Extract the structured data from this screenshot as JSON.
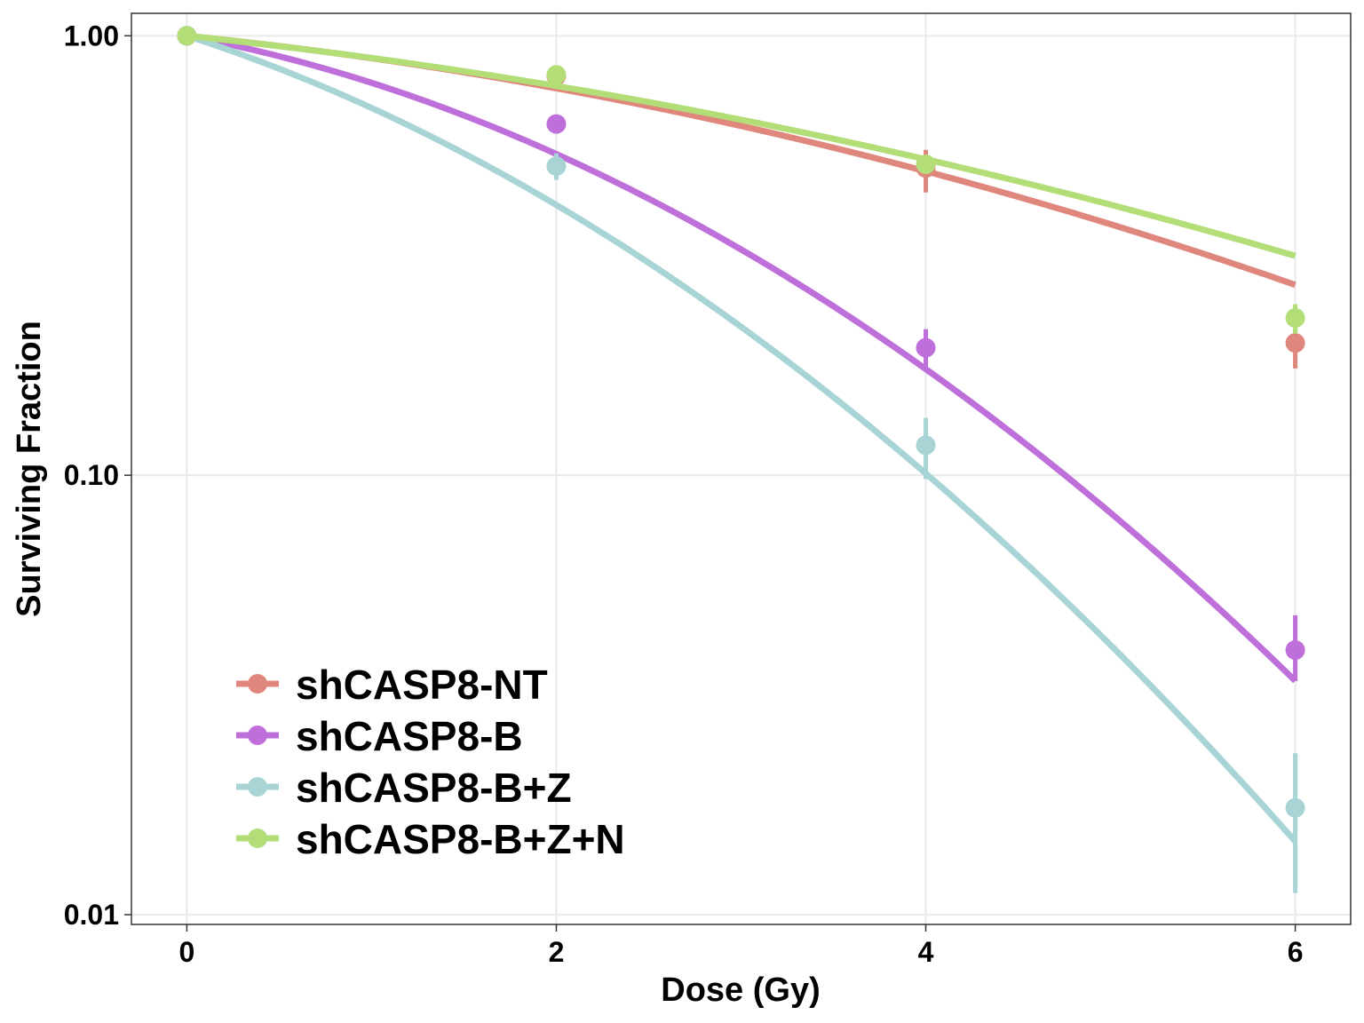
{
  "chart_data": {
    "type": "line",
    "title": "",
    "xlabel": "Dose (Gy)",
    "ylabel": "Surviving Fraction",
    "xlim": [
      -0.3,
      6.3
    ],
    "ylim": [
      0.0095,
      1.125
    ],
    "y_scale": "log",
    "grid": true,
    "legend_position": "bottom-left",
    "x_ticks": [
      0,
      2,
      4,
      6
    ],
    "x_tick_labels": [
      "0",
      "2",
      "4",
      "6"
    ],
    "y_ticks": [
      0.01,
      0.1,
      1
    ],
    "y_tick_labels": [
      "0.01",
      "0.10",
      "1.00"
    ],
    "series": [
      {
        "name": "shCASP8-NT",
        "color": "#E0877D",
        "points": [
          {
            "x": 0,
            "y": 1.0,
            "ymin": 1.0,
            "ymax": 1.0
          },
          {
            "x": 2,
            "y": 0.81,
            "ymin": 0.79,
            "ymax": 0.83
          },
          {
            "x": 4,
            "y": 0.5,
            "ymin": 0.44,
            "ymax": 0.55
          },
          {
            "x": 6,
            "y": 0.2,
            "ymin": 0.175,
            "ymax": 0.215
          }
        ],
        "fit": {
          "alpha": 0.0975,
          "beta": 0.02
        }
      },
      {
        "name": "shCASP8-B",
        "color": "#BE6FDA",
        "points": [
          {
            "x": 0,
            "y": 1.0,
            "ymin": 1.0,
            "ymax": 1.0
          },
          {
            "x": 2,
            "y": 0.63,
            "ymin": 0.61,
            "ymax": 0.65
          },
          {
            "x": 4,
            "y": 0.195,
            "ymin": 0.175,
            "ymax": 0.215
          },
          {
            "x": 6,
            "y": 0.04,
            "ymin": 0.034,
            "ymax": 0.048
          }
        ],
        "fit": {
          "alpha": 0.183,
          "beta": 0.0634
        }
      },
      {
        "name": "shCASP8-B+Z",
        "color": "#A8D4D6",
        "points": [
          {
            "x": 0,
            "y": 1.0,
            "ymin": 1.0,
            "ymax": 1.0
          },
          {
            "x": 2,
            "y": 0.505,
            "ymin": 0.47,
            "ymax": 0.54
          },
          {
            "x": 4,
            "y": 0.117,
            "ymin": 0.098,
            "ymax": 0.135
          },
          {
            "x": 6,
            "y": 0.0175,
            "ymin": 0.0112,
            "ymax": 0.0233
          }
        ],
        "fit": {
          "alpha": 0.313,
          "beta": 0.0651
        }
      },
      {
        "name": "shCASP8-B+Z+N",
        "color": "#B2DD77",
        "points": [
          {
            "x": 0,
            "y": 1.0,
            "ymin": 1.0,
            "ymax": 1.0
          },
          {
            "x": 2,
            "y": 0.815,
            "ymin": 0.795,
            "ymax": 0.835
          },
          {
            "x": 4,
            "y": 0.51,
            "ymin": 0.49,
            "ymax": 0.53
          },
          {
            "x": 6,
            "y": 0.228,
            "ymin": 0.21,
            "ymax": 0.245
          }
        ],
        "fit": {
          "alpha": 0.101,
          "beta": 0.0152
        }
      }
    ]
  }
}
